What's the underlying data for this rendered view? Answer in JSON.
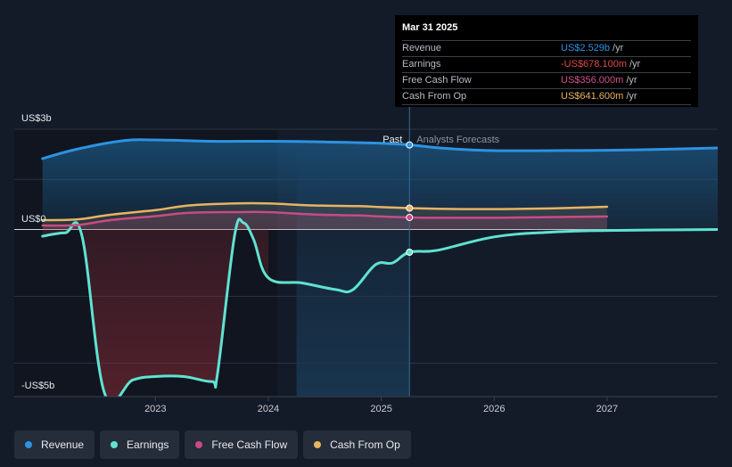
{
  "chart_data": {
    "type": "line",
    "y_unit_label_top": "US$3b",
    "y_unit_label_zero": "US$0",
    "y_unit_label_bottom": "-US$5b",
    "ylim": [
      -5,
      3
    ],
    "x_ticks": [
      "2023",
      "2024",
      "2025",
      "2026",
      "2027"
    ],
    "x_tick_values": [
      2023.0,
      2024.0,
      2025.0,
      2026.0,
      2027.0
    ],
    "xlim": [
      2021.75,
      2027.98
    ],
    "divider_x": 2025.25,
    "past_shade_start": 2024.25,
    "past_label": "Past",
    "forecast_label": "Analysts Forecasts",
    "series": [
      {
        "name": "Revenue",
        "color": "#2d93e0",
        "area": true,
        "points": [
          [
            2022.0,
            2.12
          ],
          [
            2022.3,
            2.4
          ],
          [
            2022.7,
            2.65
          ],
          [
            2023.0,
            2.68
          ],
          [
            2023.5,
            2.64
          ],
          [
            2024.0,
            2.64
          ],
          [
            2024.5,
            2.62
          ],
          [
            2025.0,
            2.58
          ],
          [
            2025.25,
            2.53
          ],
          [
            2025.6,
            2.42
          ],
          [
            2026.0,
            2.36
          ],
          [
            2026.5,
            2.36
          ],
          [
            2027.0,
            2.37
          ],
          [
            2027.5,
            2.4
          ],
          [
            2027.98,
            2.44
          ]
        ]
      },
      {
        "name": "Earnings",
        "color": "#5fe3d1",
        "area": true,
        "points": [
          [
            2022.0,
            -0.2
          ],
          [
            2022.2,
            -0.1
          ],
          [
            2022.35,
            -0.2
          ],
          [
            2022.55,
            -4.9
          ],
          [
            2022.8,
            -4.5
          ],
          [
            2023.0,
            -4.4
          ],
          [
            2023.25,
            -4.4
          ],
          [
            2023.5,
            -4.55
          ],
          [
            2023.55,
            -4.3
          ],
          [
            2023.7,
            -0.2
          ],
          [
            2023.78,
            0.2
          ],
          [
            2023.87,
            -0.3
          ],
          [
            2024.0,
            -1.45
          ],
          [
            2024.3,
            -1.6
          ],
          [
            2024.6,
            -1.8
          ],
          [
            2024.75,
            -1.8
          ],
          [
            2024.95,
            -1.05
          ],
          [
            2025.1,
            -1.0
          ],
          [
            2025.25,
            -0.68
          ],
          [
            2025.5,
            -0.62
          ],
          [
            2026.0,
            -0.22
          ],
          [
            2026.5,
            -0.08
          ],
          [
            2027.0,
            -0.03
          ],
          [
            2027.98,
            0.0
          ]
        ]
      },
      {
        "name": "Free Cash Flow",
        "color": "#c94b83",
        "area": true,
        "points": [
          [
            2022.0,
            0.12
          ],
          [
            2022.3,
            0.13
          ],
          [
            2022.6,
            0.28
          ],
          [
            2023.0,
            0.4
          ],
          [
            2023.3,
            0.5
          ],
          [
            2023.7,
            0.52
          ],
          [
            2024.0,
            0.52
          ],
          [
            2024.4,
            0.45
          ],
          [
            2024.8,
            0.42
          ],
          [
            2025.0,
            0.39
          ],
          [
            2025.25,
            0.36
          ],
          [
            2025.5,
            0.35
          ],
          [
            2026.0,
            0.35
          ],
          [
            2026.5,
            0.37
          ],
          [
            2027.0,
            0.39
          ]
        ]
      },
      {
        "name": "Cash From Op",
        "color": "#e9b361",
        "area": true,
        "points": [
          [
            2022.0,
            0.28
          ],
          [
            2022.3,
            0.3
          ],
          [
            2022.6,
            0.44
          ],
          [
            2023.0,
            0.58
          ],
          [
            2023.3,
            0.72
          ],
          [
            2023.7,
            0.78
          ],
          [
            2024.0,
            0.78
          ],
          [
            2024.4,
            0.72
          ],
          [
            2024.8,
            0.7
          ],
          [
            2025.0,
            0.67
          ],
          [
            2025.25,
            0.64
          ],
          [
            2025.5,
            0.62
          ],
          [
            2026.0,
            0.61
          ],
          [
            2026.5,
            0.63
          ],
          [
            2027.0,
            0.68
          ]
        ]
      }
    ],
    "markers": [
      {
        "series": "Revenue",
        "x": 2025.25,
        "y": 2.53
      },
      {
        "series": "Cash From Op",
        "x": 2025.25,
        "y": 0.64
      },
      {
        "series": "Free Cash Flow",
        "x": 2025.25,
        "y": 0.36
      },
      {
        "series": "Earnings",
        "x": 2025.25,
        "y": -0.68
      }
    ]
  },
  "tooltip": {
    "date": "Mar 31 2025",
    "rows": [
      {
        "label": "Revenue",
        "value": "US$2.529b",
        "unit": "/yr",
        "color": "#2d93e0"
      },
      {
        "label": "Earnings",
        "value": "-US$678.100m",
        "unit": "/yr",
        "color": "#e04a4a"
      },
      {
        "label": "Free Cash Flow",
        "value": "US$356.000m",
        "unit": "/yr",
        "color": "#d3548c"
      },
      {
        "label": "Cash From Op",
        "value": "US$641.600m",
        "unit": "/yr",
        "color": "#e9b361"
      }
    ]
  },
  "legend": [
    {
      "label": "Revenue",
      "color": "#2d93e0"
    },
    {
      "label": "Earnings",
      "color": "#5fe3d1"
    },
    {
      "label": "Free Cash Flow",
      "color": "#c94b83"
    },
    {
      "label": "Cash From Op",
      "color": "#e9b361"
    }
  ]
}
